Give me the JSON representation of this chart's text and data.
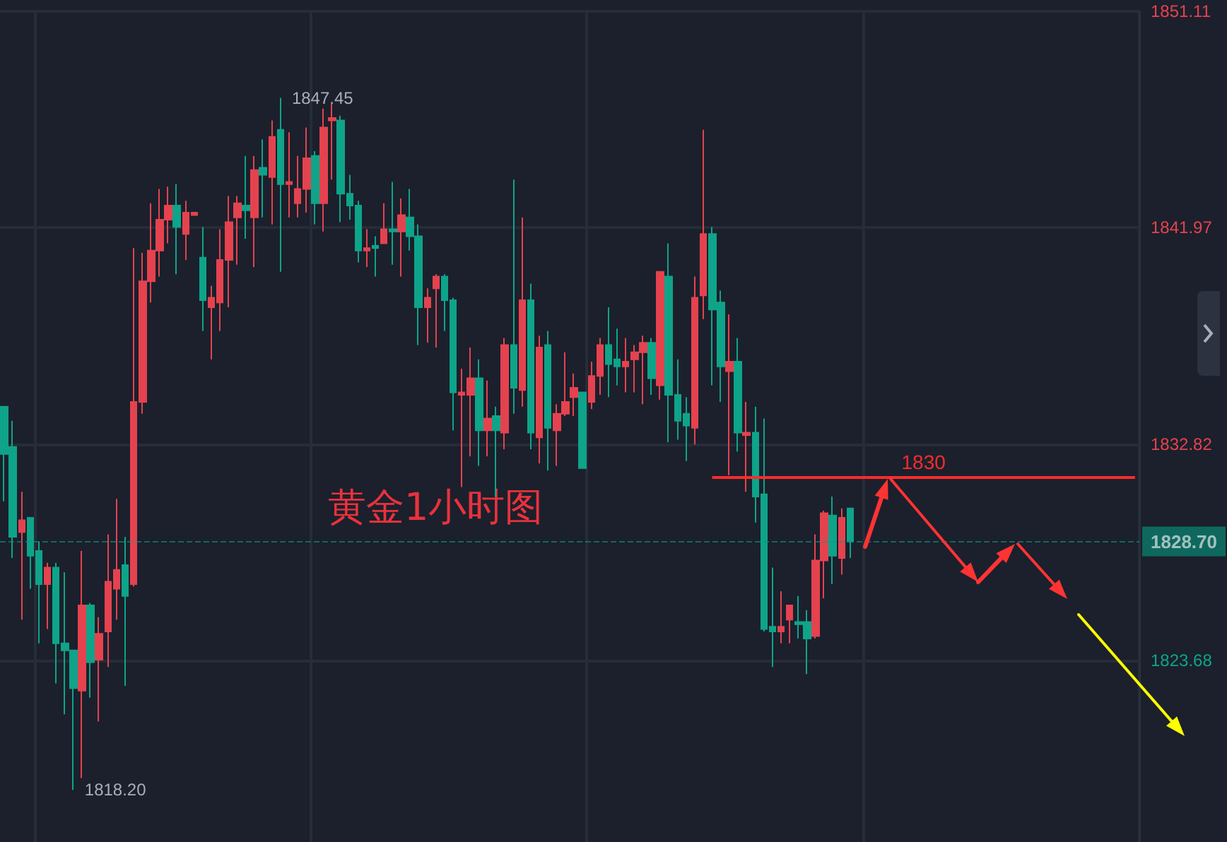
{
  "chart_data": {
    "type": "candlestick",
    "categories": [
      null,
      null,
      null,
      null,
      null,
      null,
      null,
      null,
      null,
      null,
      null,
      null,
      null,
      null,
      null,
      null,
      null,
      null,
      null,
      null,
      null,
      null,
      null,
      null,
      null,
      null,
      null,
      null,
      null,
      null,
      null,
      null,
      null,
      null,
      null,
      null,
      null,
      null,
      null,
      null,
      null,
      null,
      null,
      null,
      null,
      null,
      null,
      null,
      null,
      null,
      null,
      null,
      null,
      null,
      null,
      null,
      null,
      null,
      null,
      null,
      null,
      null,
      null,
      null,
      null,
      null,
      null,
      null,
      null,
      null,
      null,
      null,
      null,
      null,
      null,
      null,
      null,
      null,
      null,
      null,
      null,
      null,
      null,
      null,
      null,
      null,
      null,
      null,
      null,
      null,
      null,
      null,
      null,
      null,
      null,
      null,
      null,
      null,
      null,
      null,
      null,
      null,
      null,
      null,
      null,
      null,
      null,
      null,
      null,
      null,
      null,
      null,
      null,
      null,
      null,
      null,
      null,
      null,
      null,
      null,
      null,
      null,
      null,
      null,
      null,
      null,
      null,
      null,
      null,
      null,
      null,
      null
    ],
    "ohlc": [
      [
        1834.4,
        1834.4,
        1830.4,
        1832.4
      ],
      [
        1832.7,
        1833.8,
        1828.0,
        1828.9
      ],
      [
        1829.1,
        1830.8,
        1825.4,
        1829.6
      ],
      [
        1829.7,
        1829.7,
        1826.7,
        1828.1
      ],
      [
        1828.3,
        1828.7,
        1824.4,
        1826.9
      ],
      [
        1826.9,
        1827.8,
        1825.0,
        1827.6
      ],
      [
        1827.6,
        1827.8,
        1822.7,
        1824.4
      ],
      [
        1824.4,
        1827.4,
        1821.4,
        1824.1
      ],
      [
        1824.1,
        1824.1,
        1818.2,
        1822.5
      ],
      [
        1822.4,
        1828.3,
        1818.7,
        1826.0
      ],
      [
        1826.0,
        1826.1,
        1822.1,
        1823.6
      ],
      [
        1823.7,
        1825.5,
        1821.1,
        1824.8
      ],
      [
        1824.9,
        1829.0,
        1823.4,
        1827.0
      ],
      [
        1826.7,
        1830.5,
        1825.4,
        1827.5
      ],
      [
        1827.7,
        1828.9,
        1822.6,
        1826.4
      ],
      [
        1826.9,
        1841.1,
        1826.8,
        1834.6
      ],
      [
        1834.6,
        1840.9,
        1834.1,
        1839.7
      ],
      [
        1839.7,
        1843.0,
        1838.8,
        1841.0
      ],
      [
        1841.0,
        1843.6,
        1839.9,
        1842.3
      ],
      [
        1842.3,
        1843.7,
        1841.3,
        1842.9
      ],
      [
        1842.9,
        1843.8,
        1840.0,
        1842.0
      ],
      [
        1841.7,
        1843.1,
        1840.6,
        1842.6
      ],
      [
        1842.5,
        1842.6,
        1842.5,
        1842.6
      ],
      [
        1840.7,
        1842.0,
        1837.6,
        1838.9
      ],
      [
        1838.6,
        1839.5,
        1836.4,
        1839.0
      ],
      [
        1838.8,
        1841.9,
        1837.6,
        1840.6
      ],
      [
        1840.6,
        1843.3,
        1838.6,
        1842.2
      ],
      [
        1842.4,
        1843.3,
        1840.4,
        1843.0
      ],
      [
        1842.9,
        1845.0,
        1841.5,
        1842.7
      ],
      [
        1842.4,
        1845.0,
        1840.3,
        1844.4
      ],
      [
        1844.5,
        1845.7,
        1842.4,
        1844.2
      ],
      [
        1844.1,
        1846.5,
        1842.1,
        1845.8
      ],
      [
        1846.1,
        1847.45,
        1840.1,
        1843.8
      ],
      [
        1843.8,
        1846.0,
        1842.4,
        1843.9
      ],
      [
        1843.0,
        1845.0,
        1842.4,
        1843.6
      ],
      [
        1843.6,
        1846.2,
        1842.6,
        1844.9
      ],
      [
        1845.0,
        1845.2,
        1842.1,
        1843.0
      ],
      [
        1843.0,
        1847.0,
        1841.8,
        1846.2
      ],
      [
        1846.5,
        1847.2,
        1844.0,
        1846.6
      ],
      [
        1846.5,
        1846.7,
        1842.2,
        1843.4
      ],
      [
        1843.4,
        1844.2,
        1842.3,
        1842.9
      ],
      [
        1842.9,
        1843.1,
        1840.5,
        1841.0
      ],
      [
        1841.0,
        1841.9,
        1840.3,
        1841.1
      ],
      [
        1841.2,
        1841.6,
        1839.9,
        1841.1
      ],
      [
        1841.3,
        1843.0,
        1841.3,
        1841.9
      ],
      [
        1841.9,
        1843.9,
        1840.4,
        1841.8
      ],
      [
        1841.8,
        1843.2,
        1839.9,
        1842.5
      ],
      [
        1842.4,
        1843.6,
        1841.0,
        1841.6
      ],
      [
        1841.6,
        1842.1,
        1837.0,
        1838.6
      ],
      [
        1838.6,
        1839.4,
        1837.1,
        1839.0
      ],
      [
        1839.4,
        1840.0,
        1836.9,
        1839.9
      ],
      [
        1839.9,
        1840.0,
        1837.6,
        1838.9
      ],
      [
        1838.9,
        1839.0,
        1833.4,
        1835.0
      ],
      [
        1834.9,
        1836.0,
        1831.0,
        1835.0
      ],
      [
        1834.9,
        1836.9,
        1832.3,
        1835.6
      ],
      [
        1835.6,
        1836.4,
        1831.9,
        1833.4
      ],
      [
        1833.4,
        1835.5,
        1832.3,
        1833.9
      ],
      [
        1834.0,
        1834.4,
        1830.6,
        1833.4
      ],
      [
        1833.3,
        1837.3,
        1832.6,
        1837.0
      ],
      [
        1837.0,
        1844.0,
        1834.1,
        1835.2
      ],
      [
        1835.1,
        1842.4,
        1834.4,
        1838.9
      ],
      [
        1838.9,
        1839.6,
        1832.6,
        1833.3
      ],
      [
        1833.1,
        1837.4,
        1832.0,
        1836.9
      ],
      [
        1837.0,
        1837.6,
        1831.7,
        1833.5
      ],
      [
        1833.4,
        1834.5,
        1831.9,
        1834.1
      ],
      [
        1834.1,
        1836.7,
        1834.0,
        1834.6
      ],
      [
        1834.8,
        1835.8,
        1834.0,
        1835.2
      ],
      [
        1835.0,
        1835.0,
        1831.8,
        1831.8
      ],
      [
        1834.6,
        1836.3,
        1834.3,
        1835.7
      ],
      [
        1835.7,
        1837.3,
        1834.9,
        1837.0
      ],
      [
        1837.0,
        1838.6,
        1834.8,
        1836.2
      ],
      [
        1836.4,
        1837.7,
        1835.3,
        1836.1
      ],
      [
        1836.1,
        1837.3,
        1835.0,
        1836.3
      ],
      [
        1836.4,
        1837.0,
        1835.0,
        1836.7
      ],
      [
        1836.7,
        1837.4,
        1834.5,
        1837.1
      ],
      [
        1837.1,
        1837.3,
        1834.9,
        1835.6
      ],
      [
        1835.3,
        1840.1,
        1834.7,
        1840.1
      ],
      [
        1839.9,
        1841.3,
        1832.9,
        1834.9
      ],
      [
        1834.9,
        1836.4,
        1833.0,
        1833.8
      ],
      [
        1834.1,
        1834.8,
        1832.1,
        1833.6
      ],
      [
        1833.5,
        1839.9,
        1832.8,
        1839.0
      ],
      [
        1839.1,
        1846.1,
        1838.1,
        1841.7
      ],
      [
        1841.7,
        1842.0,
        1835.3,
        1838.5
      ],
      [
        1838.8,
        1839.3,
        1834.6,
        1836.1
      ],
      [
        1835.9,
        1838.3,
        1831.5,
        1836.3
      ],
      [
        1836.3,
        1837.3,
        1832.5,
        1833.3
      ],
      [
        1833.2,
        1834.6,
        1830.8,
        1833.3
      ],
      [
        1833.3,
        1834.4,
        1829.5,
        1830.6
      ],
      [
        1830.7,
        1833.9,
        1824.9,
        1825.0
      ],
      [
        1825.1,
        1827.6,
        1823.4,
        1824.9
      ],
      [
        1824.9,
        1826.6,
        1824.4,
        1825.1
      ],
      [
        1825.4,
        1826.0,
        1824.4,
        1826.0
      ],
      [
        1825.3,
        1826.4,
        1824.6,
        1825.2
      ],
      [
        1825.3,
        1825.8,
        1823.1,
        1824.6
      ],
      [
        1824.7,
        1829.0,
        1824.6,
        1827.9
      ],
      [
        1827.9,
        1830.0,
        1826.3,
        1829.9
      ],
      [
        1829.8,
        1830.6,
        1826.9,
        1828.1
      ],
      [
        1828.0,
        1830.1,
        1827.3,
        1829.7
      ],
      [
        1830.1,
        1830.1,
        1828.0,
        1828.7
      ],
      null,
      null,
      null,
      null,
      null,
      null,
      null,
      null,
      null,
      null,
      null,
      null,
      null,
      null,
      null,
      null,
      null,
      null,
      null,
      null,
      null,
      null,
      null,
      null,
      null,
      null,
      null,
      null,
      null,
      null,
      null,
      null,
      null
    ],
    "ylim": [
      1816.0,
      1851.11
    ],
    "yticks": [
      1823.68,
      1832.82,
      1841.97,
      1851.11
    ],
    "tick_labels": "y",
    "grid": true,
    "ref_lines": [
      {
        "axis": "y",
        "value": 1831.4,
        "color": "#ff2b2b",
        "line_style": "solid"
      },
      {
        "axis": "y",
        "value": 1828.7,
        "label": "1828.70",
        "color": "#089981",
        "line_style": "dashed"
      }
    ],
    "annotations": [
      "黄金1小时图",
      "1847.45",
      "1818.20",
      "1830"
    ]
  }
}
